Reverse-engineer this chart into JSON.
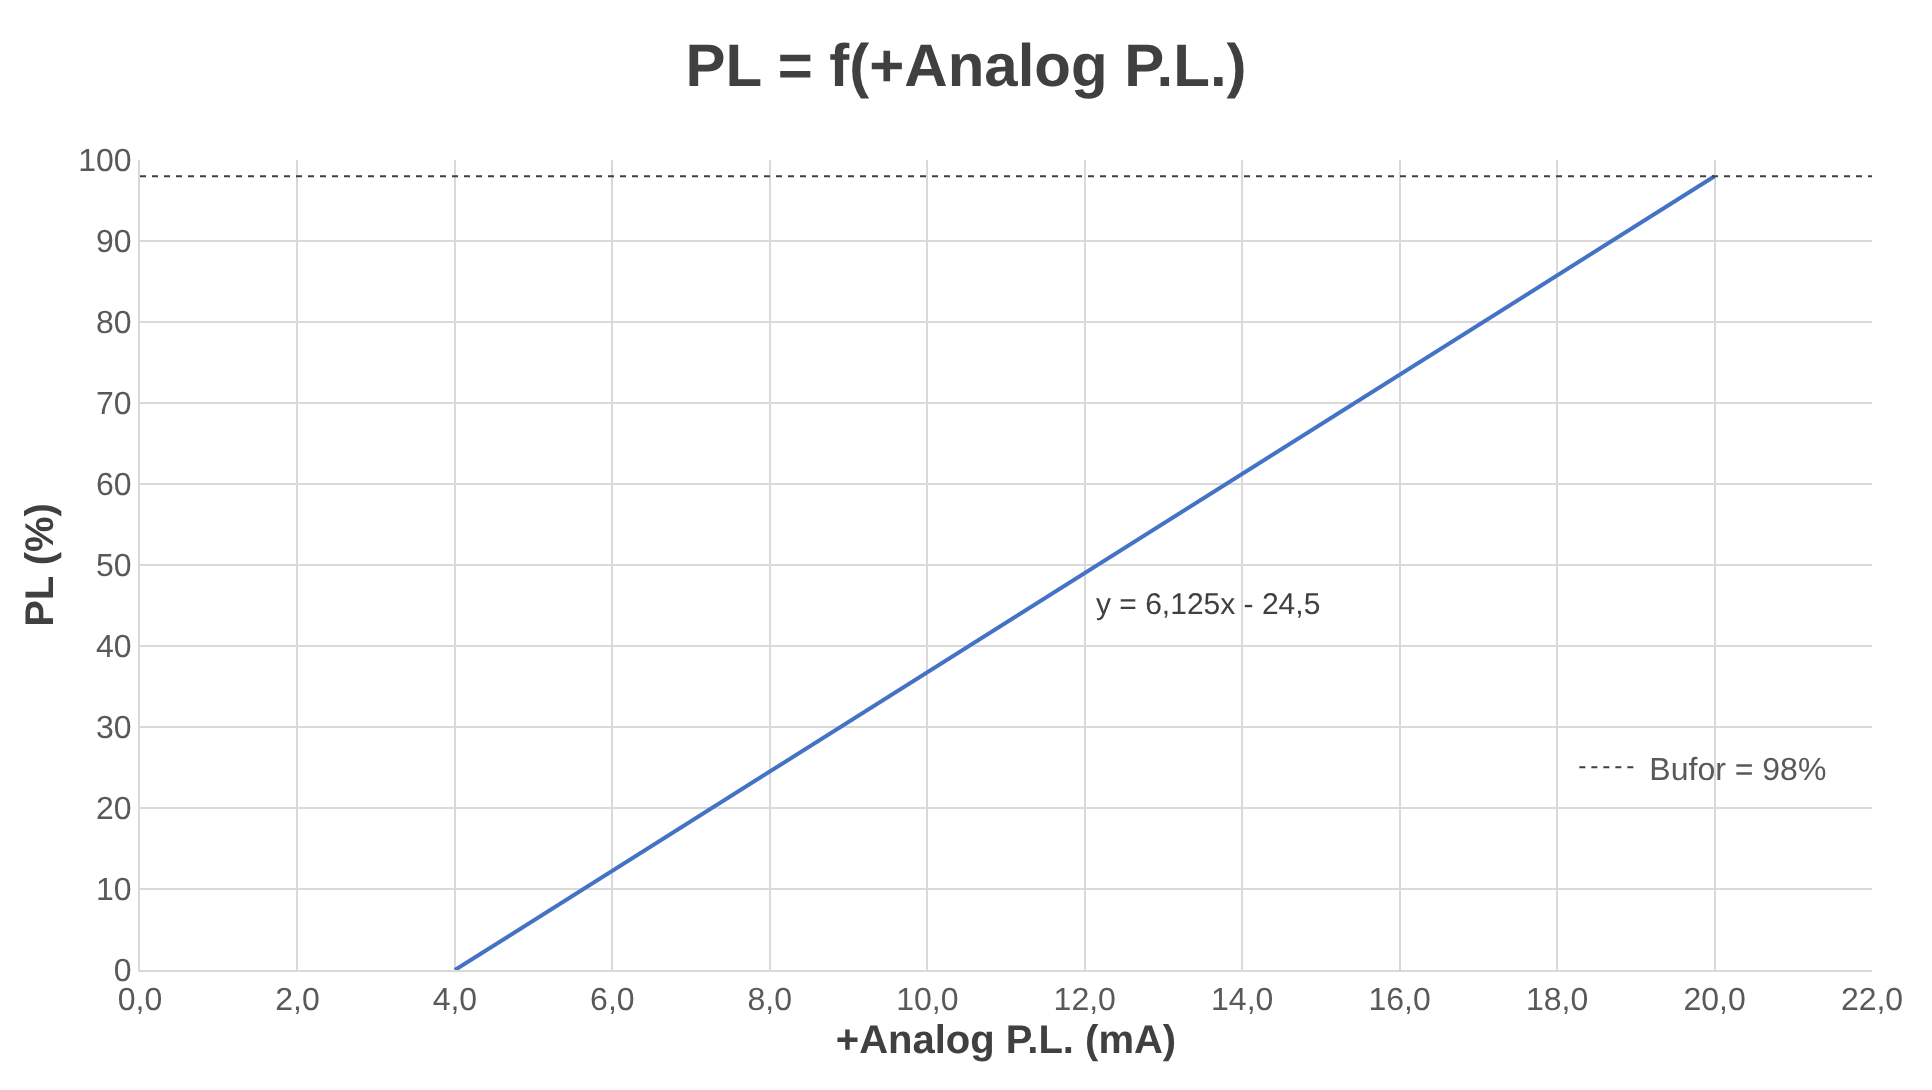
{
  "chart_data": {
    "type": "line",
    "title": "PL = f(+Analog P.L.)",
    "xlabel": "+Analog P.L. (mA)",
    "ylabel": "PL (%)",
    "series": [
      {
        "color": "#4472c4",
        "x": [
          4,
          20
        ],
        "values": [
          0,
          98
        ],
        "line_style": "solid"
      },
      {
        "name": "Bufor = 98%",
        "color": "#404040",
        "x": [
          0,
          22
        ],
        "values": [
          98,
          98
        ],
        "line_style": "dotted"
      }
    ],
    "annotations": [
      "y = 6,125x - 24,5"
    ],
    "xlim": [
      0,
      22
    ],
    "xticks": [
      {
        "value": 0,
        "label": "0,0"
      },
      {
        "value": 2,
        "label": "2,0"
      },
      {
        "value": 4,
        "label": "4,0"
      },
      {
        "value": 6,
        "label": "6,0"
      },
      {
        "value": 8,
        "label": "8,0"
      },
      {
        "value": 10,
        "label": "10,0"
      },
      {
        "value": 12,
        "label": "12,0"
      },
      {
        "value": 14,
        "label": "14,0"
      },
      {
        "value": 16,
        "label": "16,0"
      },
      {
        "value": 18,
        "label": "18,0"
      },
      {
        "value": 20,
        "label": "20,0"
      },
      {
        "value": 22,
        "label": "22,0"
      }
    ],
    "ylim": [
      0,
      100
    ],
    "yticks": [
      0,
      10,
      20,
      30,
      40,
      50,
      60,
      70,
      80,
      90,
      100
    ],
    "grid": true,
    "legend": "right",
    "marker": "none"
  }
}
